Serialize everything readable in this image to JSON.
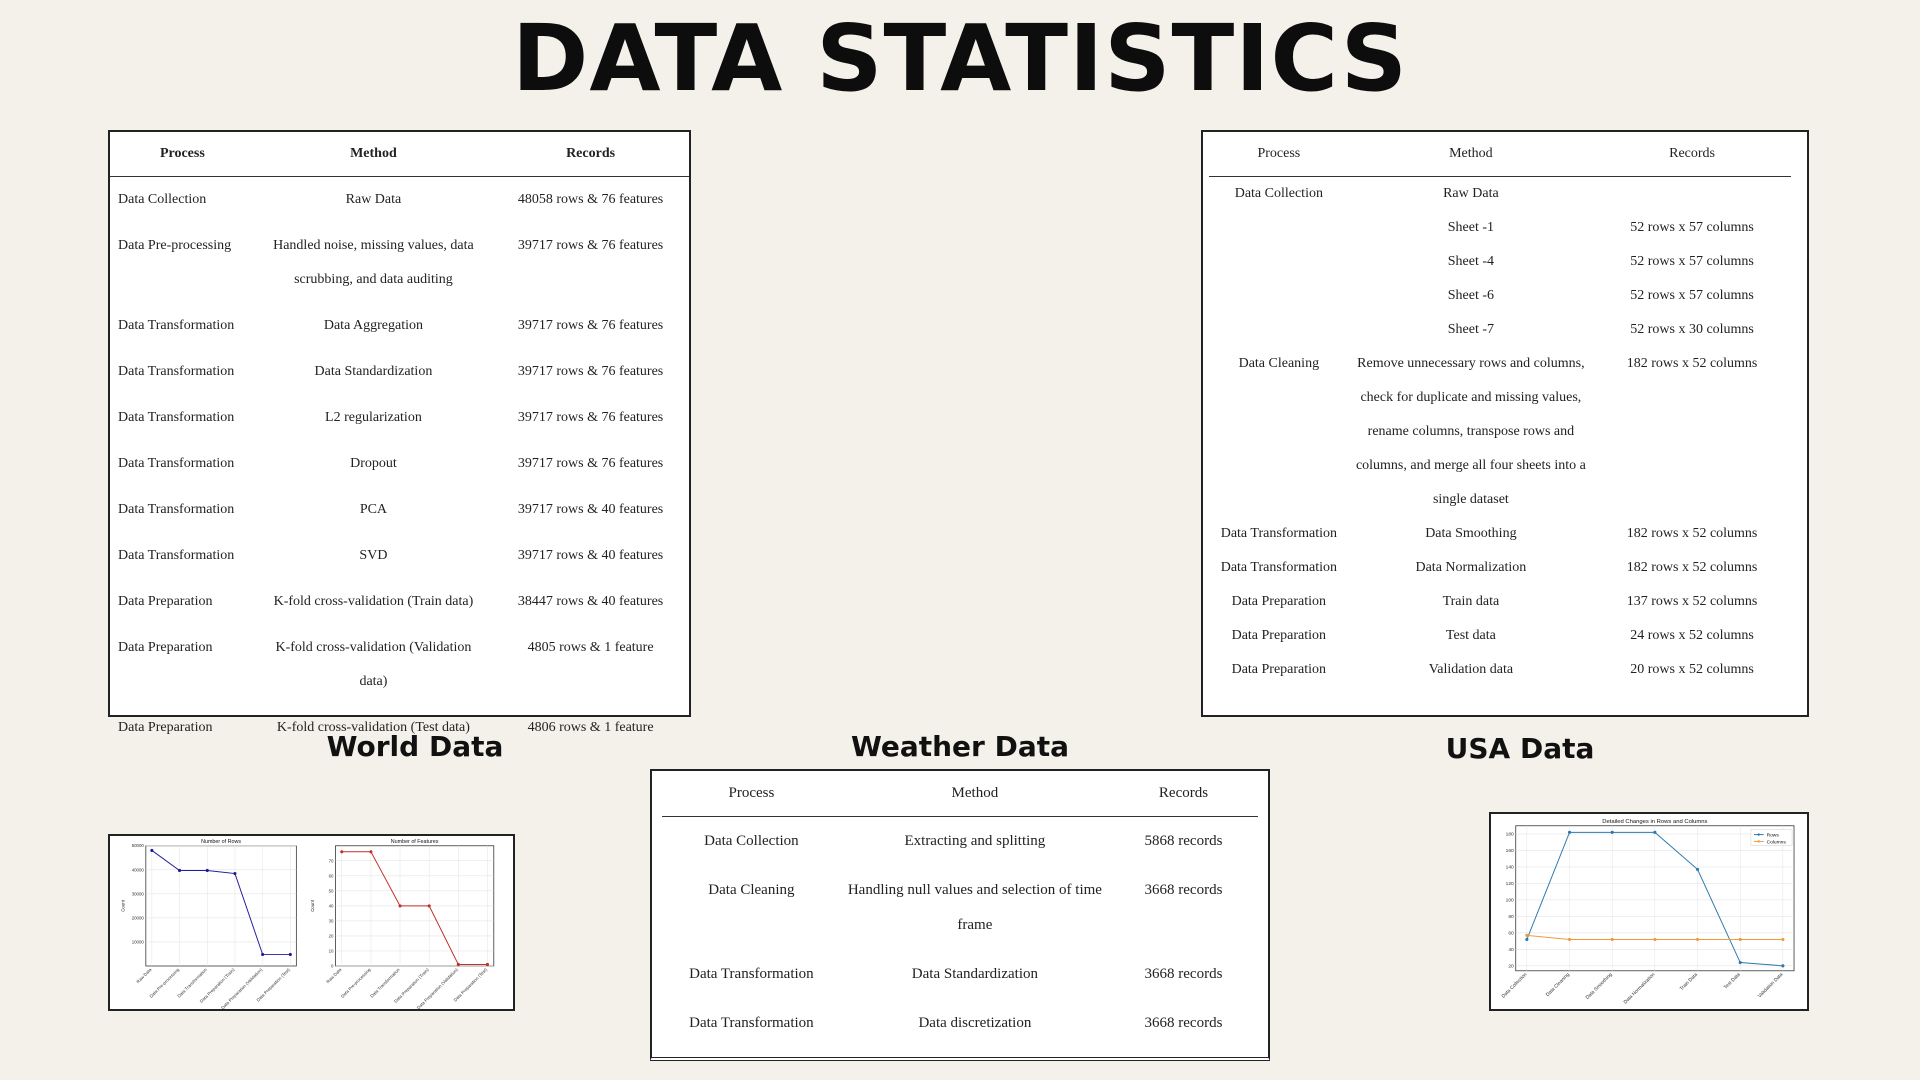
{
  "title": "DATA STATISTICS",
  "captions": {
    "world": "World Data",
    "weather": "Weather Data",
    "usa": "USA Data"
  },
  "world_table": {
    "headers": [
      "Process",
      "Method",
      "Records"
    ],
    "rows": [
      [
        "Data Collection",
        "Raw Data",
        "48058 rows & 76 features"
      ],
      [
        "Data Pre-processing",
        "Handled noise, missing values, data scrubbing, and  data auditing",
        "39717 rows & 76 features"
      ],
      [
        "Data Transformation",
        "Data Aggregation",
        "39717 rows & 76 features"
      ],
      [
        "Data Transformation",
        "Data Standardization",
        "39717 rows & 76 features"
      ],
      [
        "Data Transformation",
        "L2 regularization",
        "39717 rows & 76 features"
      ],
      [
        "Data Transformation",
        "Dropout",
        "39717 rows & 76 features"
      ],
      [
        "Data Transformation",
        "PCA",
        "39717 rows & 40 features"
      ],
      [
        "Data Transformation",
        "SVD",
        "39717 rows & 40 features"
      ],
      [
        "Data Preparation",
        "K-fold cross-validation (Train data)",
        "38447 rows & 40 features"
      ],
      [
        "Data Preparation",
        "K-fold cross-validation (Validation data)",
        "4805 rows & 1 feature"
      ],
      [
        "Data Preparation",
        "K-fold cross-validation (Test data)",
        "4806 rows & 1 feature"
      ]
    ]
  },
  "usa_table": {
    "headers": [
      "Process",
      "Method",
      "Records"
    ],
    "rows": [
      [
        "Data Collection",
        "Raw Data",
        ""
      ],
      [
        "",
        "Sheet -1",
        "52 rows x 57 columns"
      ],
      [
        "",
        "Sheet -4",
        "52 rows x 57 columns"
      ],
      [
        "",
        "Sheet -6",
        "52 rows x 57 columns"
      ],
      [
        "",
        "Sheet -7",
        "52 rows x 30 columns"
      ],
      [
        "Data Cleaning",
        "Remove unnecessary rows and columns, check for duplicate and missing values, rename columns, transpose rows and columns, and merge all four sheets into a single dataset",
        "182 rows x 52 columns"
      ],
      [
        "Data Transformation",
        "Data Smoothing",
        "182 rows x 52 columns"
      ],
      [
        "Data Transformation",
        "Data Normalization",
        "182 rows x 52 columns"
      ],
      [
        "Data Preparation",
        "Train data",
        "137 rows x 52 columns"
      ],
      [
        "Data Preparation",
        "Test data",
        "24 rows x 52 columns"
      ],
      [
        "Data Preparation",
        "Validation data",
        "20 rows x 52 columns"
      ]
    ]
  },
  "weather_table": {
    "headers": [
      "Process",
      "Method",
      "Records"
    ],
    "rows": [
      [
        "Data Collection",
        "Extracting and splitting",
        "5868 records"
      ],
      [
        "Data Cleaning",
        "Handling null values and selection of time frame",
        "3668 records"
      ],
      [
        "Data Transformation",
        "Data Standardization",
        "3668 records"
      ],
      [
        "Data Transformation",
        "Data discretization",
        "3668 records"
      ]
    ]
  },
  "chart_data": [
    {
      "type": "line",
      "title": "Number of Rows",
      "ylabel": "Count",
      "categories": [
        "Raw Data",
        "Data Pre-processing",
        "Data Transformation",
        "Data Preparation (Train)",
        "Data Preparation (Validation)",
        "Data Preparation (Test)"
      ],
      "series": [
        {
          "values": [
            48058,
            39717,
            39717,
            38447,
            4805,
            4806
          ]
        }
      ],
      "ylim": [
        0,
        50000
      ],
      "yticks": [
        10000,
        20000,
        30000,
        40000,
        50000
      ],
      "color": "#1f1f9a",
      "grid": true
    },
    {
      "type": "line",
      "title": "Number of Features",
      "ylabel": "Count",
      "categories": [
        "Raw Data",
        "Data Pre-processing",
        "Data Transformation",
        "Data Preparation (Train)",
        "Data Preparation (Validation)",
        "Data Preparation (Test)"
      ],
      "series": [
        {
          "values": [
            76,
            76,
            40,
            40,
            1,
            1
          ]
        }
      ],
      "ylim": [
        0,
        80
      ],
      "yticks": [
        0,
        10,
        20,
        30,
        40,
        50,
        60,
        70
      ],
      "color": "#c0302b",
      "grid": true
    },
    {
      "type": "line",
      "title": "Detailed Changes in Rows and Columns",
      "categories": [
        "Data Collection",
        "Data Cleaning",
        "Data Smoothing",
        "Data Normalization",
        "Train Data",
        "Test Data",
        "Validation Data"
      ],
      "series": [
        {
          "name": "Rows",
          "values": [
            52,
            182,
            182,
            182,
            137,
            24,
            20
          ],
          "color": "#2a7ab0"
        },
        {
          "name": "Columns",
          "values": [
            57,
            52,
            52,
            52,
            52,
            52,
            52
          ],
          "color": "#f39a3c"
        }
      ],
      "ylim": [
        14,
        190
      ],
      "yticks": [
        20,
        40,
        60,
        80,
        100,
        120,
        140,
        160,
        180
      ],
      "legend": "top-right",
      "grid": true
    }
  ]
}
